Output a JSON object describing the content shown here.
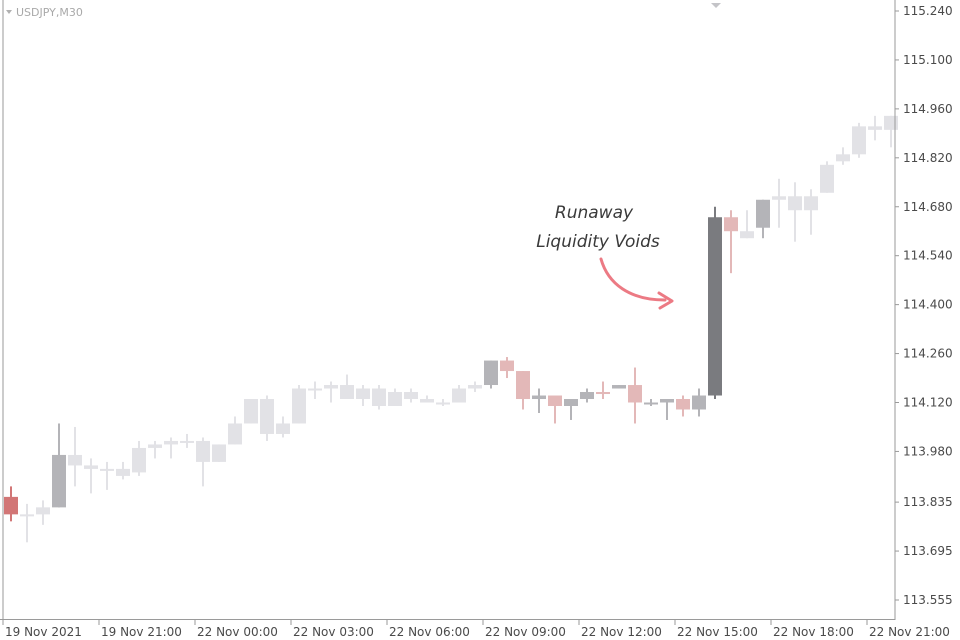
{
  "chart_data": {
    "type": "candlestick",
    "symbol_label": "USDJPY,M30",
    "ylim": [
      113.5,
      115.28
    ],
    "y_ticks": [
      "115.240",
      "115.100",
      "114.960",
      "114.820",
      "114.680",
      "114.540",
      "114.400",
      "114.260",
      "114.120",
      "113.980",
      "113.835",
      "113.695",
      "113.555"
    ],
    "x_ticks": [
      "19 Nov 2021",
      "19 Nov 21:00",
      "22 Nov 00:00",
      "22 Nov 03:00",
      "22 Nov 06:00",
      "22 Nov 09:00",
      "22 Nov 12:00",
      "22 Nov 15:00",
      "22 Nov 18:00",
      "22 Nov 21:00"
    ],
    "annotation": [
      "Runaway",
      "Liquidity Voids"
    ],
    "colors": {
      "normal": "#e2e2e6",
      "bear_highlight": "#e3b8b8",
      "bull_highlight": "#b4b4b8",
      "void_candle": "#7a7b7f",
      "first_candle": "#d27676",
      "arrow": "#ec7a84",
      "axis": "#9a9a9a"
    },
    "candles": [
      {
        "o": 113.85,
        "h": 113.88,
        "l": 113.78,
        "c": 113.8,
        "k": "first_candle"
      },
      {
        "o": 113.8,
        "h": 113.83,
        "l": 113.72,
        "c": 113.8,
        "k": "normal"
      },
      {
        "o": 113.8,
        "h": 113.84,
        "l": 113.77,
        "c": 113.82,
        "k": "normal"
      },
      {
        "o": 113.82,
        "h": 114.06,
        "l": 113.82,
        "c": 113.97,
        "k": "bull_highlight"
      },
      {
        "o": 113.97,
        "h": 114.05,
        "l": 113.88,
        "c": 113.94,
        "k": "normal"
      },
      {
        "o": 113.94,
        "h": 113.96,
        "l": 113.86,
        "c": 113.93,
        "k": "normal"
      },
      {
        "o": 113.93,
        "h": 113.95,
        "l": 113.87,
        "c": 113.93,
        "k": "normal"
      },
      {
        "o": 113.93,
        "h": 113.95,
        "l": 113.9,
        "c": 113.91,
        "k": "normal"
      },
      {
        "o": 113.92,
        "h": 114.01,
        "l": 113.91,
        "c": 113.99,
        "k": "normal"
      },
      {
        "o": 113.99,
        "h": 114.01,
        "l": 113.96,
        "c": 114.0,
        "k": "normal"
      },
      {
        "o": 114.0,
        "h": 114.02,
        "l": 113.96,
        "c": 114.01,
        "k": "normal"
      },
      {
        "o": 114.01,
        "h": 114.03,
        "l": 113.99,
        "c": 114.01,
        "k": "normal"
      },
      {
        "o": 114.01,
        "h": 114.02,
        "l": 113.88,
        "c": 113.95,
        "k": "normal"
      },
      {
        "o": 113.95,
        "h": 114.0,
        "l": 113.95,
        "c": 114.0,
        "k": "normal"
      },
      {
        "o": 114.0,
        "h": 114.08,
        "l": 114.0,
        "c": 114.06,
        "k": "normal"
      },
      {
        "o": 114.06,
        "h": 114.13,
        "l": 114.06,
        "c": 114.13,
        "k": "normal"
      },
      {
        "o": 114.13,
        "h": 114.14,
        "l": 114.01,
        "c": 114.03,
        "k": "normal"
      },
      {
        "o": 114.03,
        "h": 114.08,
        "l": 114.02,
        "c": 114.06,
        "k": "normal"
      },
      {
        "o": 114.06,
        "h": 114.17,
        "l": 114.06,
        "c": 114.16,
        "k": "normal"
      },
      {
        "o": 114.16,
        "h": 114.18,
        "l": 114.13,
        "c": 114.16,
        "k": "normal"
      },
      {
        "o": 114.16,
        "h": 114.18,
        "l": 114.12,
        "c": 114.17,
        "k": "normal"
      },
      {
        "o": 114.17,
        "h": 114.2,
        "l": 114.13,
        "c": 114.13,
        "k": "normal"
      },
      {
        "o": 114.13,
        "h": 114.17,
        "l": 114.11,
        "c": 114.16,
        "k": "normal"
      },
      {
        "o": 114.16,
        "h": 114.17,
        "l": 114.1,
        "c": 114.11,
        "k": "normal"
      },
      {
        "o": 114.11,
        "h": 114.16,
        "l": 114.11,
        "c": 114.15,
        "k": "normal"
      },
      {
        "o": 114.15,
        "h": 114.16,
        "l": 114.12,
        "c": 114.13,
        "k": "normal"
      },
      {
        "o": 114.13,
        "h": 114.14,
        "l": 114.12,
        "c": 114.12,
        "k": "normal"
      },
      {
        "o": 114.12,
        "h": 114.13,
        "l": 114.11,
        "c": 114.12,
        "k": "normal"
      },
      {
        "o": 114.12,
        "h": 114.17,
        "l": 114.12,
        "c": 114.16,
        "k": "normal"
      },
      {
        "o": 114.16,
        "h": 114.18,
        "l": 114.15,
        "c": 114.17,
        "k": "normal"
      },
      {
        "o": 114.17,
        "h": 114.24,
        "l": 114.16,
        "c": 114.24,
        "k": "bull_highlight"
      },
      {
        "o": 114.24,
        "h": 114.25,
        "l": 114.19,
        "c": 114.21,
        "k": "bear_highlight"
      },
      {
        "o": 114.21,
        "h": 114.21,
        "l": 114.1,
        "c": 114.13,
        "k": "bear_highlight"
      },
      {
        "o": 114.13,
        "h": 114.16,
        "l": 114.09,
        "c": 114.14,
        "k": "bull_highlight"
      },
      {
        "o": 114.14,
        "h": 114.14,
        "l": 114.06,
        "c": 114.11,
        "k": "bear_highlight"
      },
      {
        "o": 114.11,
        "h": 114.12,
        "l": 114.07,
        "c": 114.13,
        "k": "bull_highlight"
      },
      {
        "o": 114.13,
        "h": 114.16,
        "l": 114.12,
        "c": 114.15,
        "k": "bull_highlight"
      },
      {
        "o": 114.15,
        "h": 114.18,
        "l": 114.13,
        "c": 114.15,
        "k": "bear_highlight"
      },
      {
        "o": 114.16,
        "h": 114.17,
        "l": 114.16,
        "c": 114.17,
        "k": "bull_highlight"
      },
      {
        "o": 114.17,
        "h": 114.22,
        "l": 114.06,
        "c": 114.12,
        "k": "bear_highlight"
      },
      {
        "o": 114.12,
        "h": 114.13,
        "l": 114.11,
        "c": 114.12,
        "k": "bull_highlight"
      },
      {
        "o": 114.12,
        "h": 114.13,
        "l": 114.07,
        "c": 114.13,
        "k": "bull_highlight"
      },
      {
        "o": 114.13,
        "h": 114.14,
        "l": 114.08,
        "c": 114.1,
        "k": "bear_highlight"
      },
      {
        "o": 114.1,
        "h": 114.16,
        "l": 114.08,
        "c": 114.14,
        "k": "bull_highlight"
      },
      {
        "o": 114.14,
        "h": 114.68,
        "l": 114.13,
        "c": 114.65,
        "k": "void_candle"
      },
      {
        "o": 114.65,
        "h": 114.67,
        "l": 114.49,
        "c": 114.61,
        "k": "bear_highlight"
      },
      {
        "o": 114.61,
        "h": 114.67,
        "l": 114.59,
        "c": 114.59,
        "k": "normal"
      },
      {
        "o": 114.62,
        "h": 114.7,
        "l": 114.59,
        "c": 114.7,
        "k": "bull_highlight"
      },
      {
        "o": 114.7,
        "h": 114.76,
        "l": 114.62,
        "c": 114.71,
        "k": "normal"
      },
      {
        "o": 114.71,
        "h": 114.75,
        "l": 114.58,
        "c": 114.67,
        "k": "normal"
      },
      {
        "o": 114.67,
        "h": 114.73,
        "l": 114.6,
        "c": 114.71,
        "k": "normal"
      },
      {
        "o": 114.72,
        "h": 114.81,
        "l": 114.72,
        "c": 114.8,
        "k": "normal"
      },
      {
        "o": 114.81,
        "h": 114.85,
        "l": 114.8,
        "c": 114.83,
        "k": "normal"
      },
      {
        "o": 114.83,
        "h": 114.92,
        "l": 114.82,
        "c": 114.91,
        "k": "normal"
      },
      {
        "o": 114.91,
        "h": 114.94,
        "l": 114.87,
        "c": 114.9,
        "k": "normal"
      },
      {
        "o": 114.9,
        "h": 114.94,
        "l": 114.85,
        "c": 114.94,
        "k": "normal"
      }
    ]
  }
}
